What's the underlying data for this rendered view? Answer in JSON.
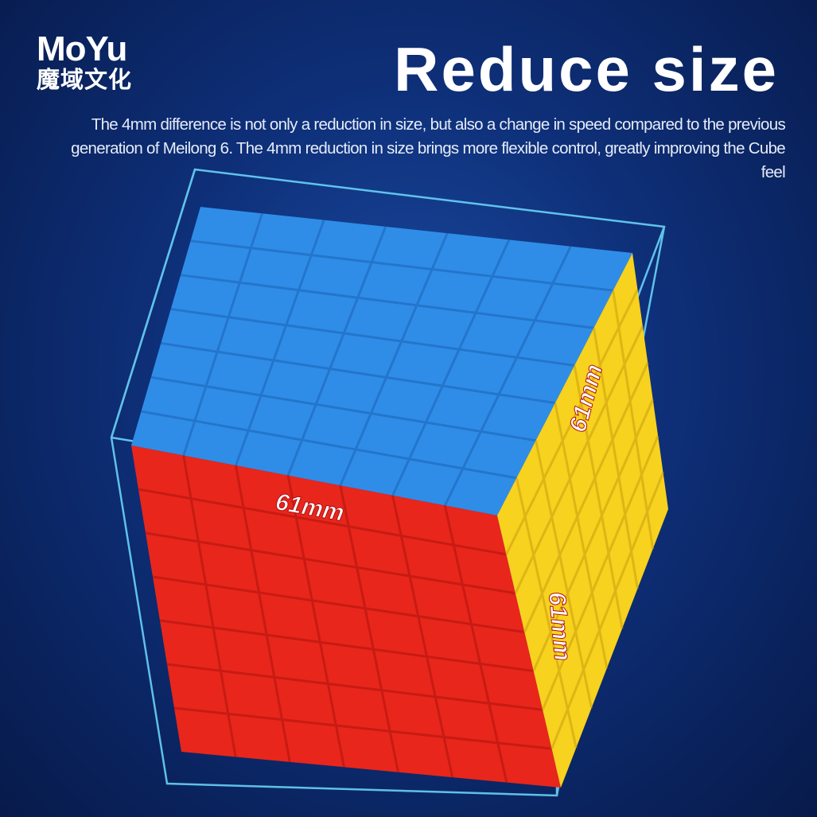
{
  "brand": {
    "name_en": "MoYu",
    "name_cn": "魔域文化"
  },
  "title": "Reduce size",
  "description": "The 4mm difference is not only a reduction in size, but also a change in speed compared to the previous generation of Meilong 6. The 4mm reduction in size brings more flexible control, greatly improving the Cube feel",
  "dimensions": {
    "top_edge": "61mm",
    "right_top": "61mm",
    "right_side": "61mm"
  },
  "colors": {
    "top": "#2f8de8",
    "front": "#e8261c",
    "right": "#f7d21e",
    "wireframe": "#5fd6ff"
  }
}
